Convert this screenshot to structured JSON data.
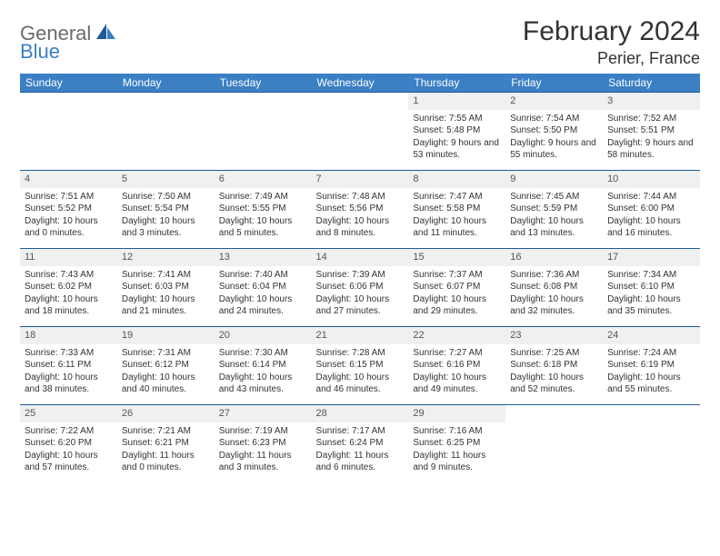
{
  "brand": {
    "part1": "General",
    "part2": "Blue"
  },
  "title": "February 2024",
  "location": "Perier, France",
  "colors": {
    "header_bg": "#3b7fc4",
    "header_text": "#ffffff",
    "daynum_bg": "#eef0f1",
    "row_border": "#1f5a99",
    "body_text": "#333333",
    "logo_grey": "#6b6b6b",
    "logo_blue": "#3b7fc4"
  },
  "weekdays": [
    "Sunday",
    "Monday",
    "Tuesday",
    "Wednesday",
    "Thursday",
    "Friday",
    "Saturday"
  ],
  "weeks": [
    [
      null,
      null,
      null,
      null,
      {
        "n": "1",
        "sunrise": "7:55 AM",
        "sunset": "5:48 PM",
        "daylight": "9 hours and 53 minutes."
      },
      {
        "n": "2",
        "sunrise": "7:54 AM",
        "sunset": "5:50 PM",
        "daylight": "9 hours and 55 minutes."
      },
      {
        "n": "3",
        "sunrise": "7:52 AM",
        "sunset": "5:51 PM",
        "daylight": "9 hours and 58 minutes."
      }
    ],
    [
      {
        "n": "4",
        "sunrise": "7:51 AM",
        "sunset": "5:52 PM",
        "daylight": "10 hours and 0 minutes."
      },
      {
        "n": "5",
        "sunrise": "7:50 AM",
        "sunset": "5:54 PM",
        "daylight": "10 hours and 3 minutes."
      },
      {
        "n": "6",
        "sunrise": "7:49 AM",
        "sunset": "5:55 PM",
        "daylight": "10 hours and 5 minutes."
      },
      {
        "n": "7",
        "sunrise": "7:48 AM",
        "sunset": "5:56 PM",
        "daylight": "10 hours and 8 minutes."
      },
      {
        "n": "8",
        "sunrise": "7:47 AM",
        "sunset": "5:58 PM",
        "daylight": "10 hours and 11 minutes."
      },
      {
        "n": "9",
        "sunrise": "7:45 AM",
        "sunset": "5:59 PM",
        "daylight": "10 hours and 13 minutes."
      },
      {
        "n": "10",
        "sunrise": "7:44 AM",
        "sunset": "6:00 PM",
        "daylight": "10 hours and 16 minutes."
      }
    ],
    [
      {
        "n": "11",
        "sunrise": "7:43 AM",
        "sunset": "6:02 PM",
        "daylight": "10 hours and 18 minutes."
      },
      {
        "n": "12",
        "sunrise": "7:41 AM",
        "sunset": "6:03 PM",
        "daylight": "10 hours and 21 minutes."
      },
      {
        "n": "13",
        "sunrise": "7:40 AM",
        "sunset": "6:04 PM",
        "daylight": "10 hours and 24 minutes."
      },
      {
        "n": "14",
        "sunrise": "7:39 AM",
        "sunset": "6:06 PM",
        "daylight": "10 hours and 27 minutes."
      },
      {
        "n": "15",
        "sunrise": "7:37 AM",
        "sunset": "6:07 PM",
        "daylight": "10 hours and 29 minutes."
      },
      {
        "n": "16",
        "sunrise": "7:36 AM",
        "sunset": "6:08 PM",
        "daylight": "10 hours and 32 minutes."
      },
      {
        "n": "17",
        "sunrise": "7:34 AM",
        "sunset": "6:10 PM",
        "daylight": "10 hours and 35 minutes."
      }
    ],
    [
      {
        "n": "18",
        "sunrise": "7:33 AM",
        "sunset": "6:11 PM",
        "daylight": "10 hours and 38 minutes."
      },
      {
        "n": "19",
        "sunrise": "7:31 AM",
        "sunset": "6:12 PM",
        "daylight": "10 hours and 40 minutes."
      },
      {
        "n": "20",
        "sunrise": "7:30 AM",
        "sunset": "6:14 PM",
        "daylight": "10 hours and 43 minutes."
      },
      {
        "n": "21",
        "sunrise": "7:28 AM",
        "sunset": "6:15 PM",
        "daylight": "10 hours and 46 minutes."
      },
      {
        "n": "22",
        "sunrise": "7:27 AM",
        "sunset": "6:16 PM",
        "daylight": "10 hours and 49 minutes."
      },
      {
        "n": "23",
        "sunrise": "7:25 AM",
        "sunset": "6:18 PM",
        "daylight": "10 hours and 52 minutes."
      },
      {
        "n": "24",
        "sunrise": "7:24 AM",
        "sunset": "6:19 PM",
        "daylight": "10 hours and 55 minutes."
      }
    ],
    [
      {
        "n": "25",
        "sunrise": "7:22 AM",
        "sunset": "6:20 PM",
        "daylight": "10 hours and 57 minutes."
      },
      {
        "n": "26",
        "sunrise": "7:21 AM",
        "sunset": "6:21 PM",
        "daylight": "11 hours and 0 minutes."
      },
      {
        "n": "27",
        "sunrise": "7:19 AM",
        "sunset": "6:23 PM",
        "daylight": "11 hours and 3 minutes."
      },
      {
        "n": "28",
        "sunrise": "7:17 AM",
        "sunset": "6:24 PM",
        "daylight": "11 hours and 6 minutes."
      },
      {
        "n": "29",
        "sunrise": "7:16 AM",
        "sunset": "6:25 PM",
        "daylight": "11 hours and 9 minutes."
      },
      null,
      null
    ]
  ],
  "labels": {
    "sunrise": "Sunrise:",
    "sunset": "Sunset:",
    "daylight": "Daylight:"
  }
}
